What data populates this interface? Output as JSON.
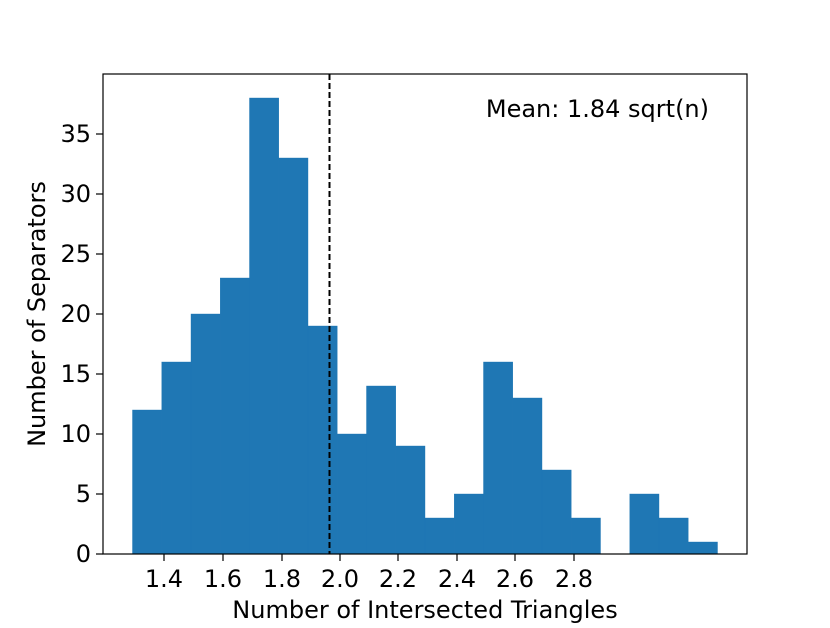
{
  "chart_data": {
    "type": "bar",
    "title": "",
    "xlabel": "Number of Intersected Triangles",
    "ylabel": "Number of Separators",
    "annotation": "Mean: 1.84 sqrt(n)",
    "mean_line": {
      "x": 1.84,
      "style": "dashed",
      "color": "#000000"
    },
    "bar_color": "#1f77b4",
    "bins": [
      {
        "x0": 1.315,
        "x1": 1.417,
        "count": 12
      },
      {
        "x0": 1.417,
        "x1": 1.519,
        "count": 16
      },
      {
        "x0": 1.519,
        "x1": 1.621,
        "count": 20
      },
      {
        "x0": 1.621,
        "x1": 1.723,
        "count": 23
      },
      {
        "x0": 1.723,
        "x1": 1.825,
        "count": 38
      },
      {
        "x0": 1.825,
        "x1": 1.927,
        "count": 33
      },
      {
        "x0": 1.927,
        "x1": 2.029,
        "count": 19
      },
      {
        "x0": 2.029,
        "x1": 2.131,
        "count": 10
      },
      {
        "x0": 2.131,
        "x1": 2.233,
        "count": 14
      },
      {
        "x0": 2.233,
        "x1": 2.335,
        "count": 9
      },
      {
        "x0": 2.335,
        "x1": 2.437,
        "count": 3
      },
      {
        "x0": 2.437,
        "x1": 2.539,
        "count": 5
      },
      {
        "x0": 2.539,
        "x1": 2.641,
        "count": 16
      },
      {
        "x0": 2.641,
        "x1": 2.743,
        "count": 13
      },
      {
        "x0": 2.743,
        "x1": 2.845,
        "count": 7
      },
      {
        "x0": 2.845,
        "x1": 2.947,
        "count": 3
      },
      {
        "x0": 2.947,
        "x1": 3.049,
        "count": 0
      },
      {
        "x0": 3.049,
        "x1": 3.151,
        "count": 5
      },
      {
        "x0": 3.151,
        "x1": 3.253,
        "count": 3
      },
      {
        "x0": 3.253,
        "x1": 3.355,
        "count": 1
      }
    ],
    "xlim": [
      1.22,
      3.45
    ],
    "ylim": [
      0,
      40
    ],
    "xticks": [
      "1.4",
      "1.6",
      "1.8",
      "2.0",
      "2.2",
      "2.4",
      "2.6",
      "2.8"
    ],
    "xtick_values": [
      1.4,
      1.6,
      1.8,
      2.0,
      2.2,
      2.4,
      2.6,
      2.8
    ],
    "yticks": [
      "0",
      "5",
      "10",
      "15",
      "20",
      "25",
      "30",
      "35"
    ],
    "ytick_values": [
      0,
      5,
      10,
      15,
      20,
      25,
      30,
      35
    ],
    "grid": false,
    "legend": "none"
  }
}
